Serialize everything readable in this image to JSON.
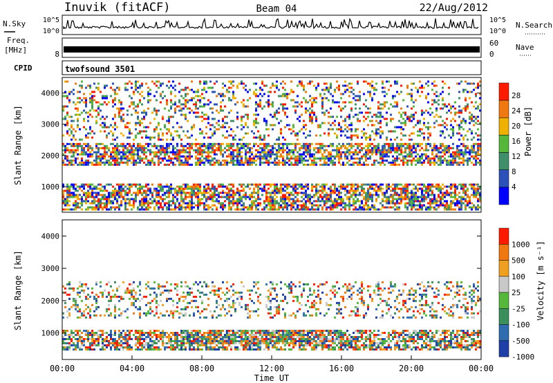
{
  "header": {
    "site": "Inuvik (fitACF)",
    "beam": "Beam 04",
    "date": "22/Aug/2012"
  },
  "noise_panel": {
    "left_label": "N.Sky",
    "right_label": "N.Search",
    "tick_top": "10^5",
    "tick_bottom": "10^0"
  },
  "freq_panel": {
    "left_label_1": "Freq.",
    "left_label_2": "[MHz]",
    "left_tick_top": "",
    "left_tick_bottom": "8",
    "right_label": "Nave",
    "right_tick_top": "60",
    "right_tick_bottom": "0"
  },
  "cpid_panel": {
    "label": "CPID",
    "program": "twofsound 3501"
  },
  "x_axis": {
    "title": "Time UT",
    "ticks": [
      "00:00",
      "04:00",
      "08:00",
      "12:00",
      "16:00",
      "20:00",
      "00:00"
    ]
  },
  "power_panel": {
    "y_label": "Slant Range [km]",
    "y_ticks": [
      "1000",
      "2000",
      "3000",
      "4000"
    ],
    "colorbar_label": "Power [dB]",
    "colorbar_ticks": [
      "4",
      "8",
      "12",
      "16",
      "20",
      "24",
      "28"
    ],
    "colors": [
      "#0000ff",
      "#2a52b8",
      "#3f8f6a",
      "#55b83a",
      "#f0b000",
      "#f07810",
      "#ff1a00"
    ]
  },
  "velocity_panel": {
    "y_label": "Slant Range [km]",
    "y_ticks": [
      "1000",
      "2000",
      "3000",
      "4000"
    ],
    "colorbar_label": "Velocity [m s⁻¹]",
    "colorbar_ticks": [
      "1000",
      "500",
      "100",
      "25",
      "-25",
      "-100",
      "-500",
      "-1000"
    ],
    "colors": [
      "#1f3fa8",
      "#2f6cb0",
      "#3a8f5a",
      "#55b83a",
      "#c8c8c8",
      "#f0a020",
      "#f07810",
      "#ff1a00"
    ]
  },
  "chart_data": [
    {
      "type": "line",
      "title": "",
      "xlabel": "",
      "ylabel": "",
      "series": [
        {
          "name": "N.Sky",
          "values": "noise level near 10^1.5 with frequent spikes"
        }
      ]
    },
    {
      "type": "heatmap",
      "title": "",
      "xlabel": "Time UT",
      "ylabel": "Slant Range [km]",
      "xlim": [
        "00:00",
        "24:00"
      ],
      "ylim": [
        180,
        4500
      ],
      "colorbar": {
        "label": "Power [dB]",
        "range": [
          0,
          30
        ]
      },
      "bands": [
        {
          "range_km": [
            300,
            1100
          ],
          "time_span": "00:00-24:00",
          "level_db": 26
        },
        {
          "range_km": [
            1700,
            2400
          ],
          "time_span": "00:00-24:00",
          "level_db": 14
        },
        {
          "range_km": [
            2500,
            4400
          ],
          "time_span": "00:00-24:00",
          "level_db": 6
        }
      ]
    },
    {
      "type": "heatmap",
      "title": "",
      "xlabel": "Time UT",
      "ylabel": "Slant Range [km]",
      "xlim": [
        "00:00",
        "24:00"
      ],
      "ylim": [
        180,
        4500
      ],
      "colorbar": {
        "label": "Velocity [m s⁻¹]",
        "range": [
          -1000,
          1000
        ]
      },
      "bands": [
        {
          "range_km": [
            500,
            1100
          ],
          "time_span": "00:00-24:00",
          "velocity": -300
        },
        {
          "range_km": [
            700,
            1100
          ],
          "time_span": "07:00-16:00",
          "velocity": 200
        },
        {
          "range_km": [
            1500,
            2600
          ],
          "time_span": "00:00-24:00",
          "velocity": 0
        }
      ]
    }
  ]
}
